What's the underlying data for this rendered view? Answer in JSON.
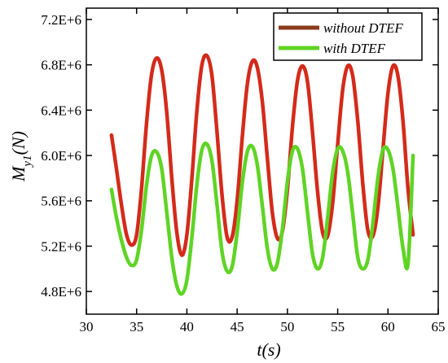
{
  "chart_data": {
    "type": "line",
    "title": "",
    "xlabel": "t(s)",
    "ylabel": "M",
    "ylabel_sub": "y1",
    "ylabel_unit": "(N)",
    "xlim": [
      30,
      65
    ],
    "ylim": [
      4600000,
      7300000
    ],
    "x_ticks": [
      30,
      35,
      40,
      45,
      50,
      55,
      60,
      65
    ],
    "x_tick_labels": [
      "30",
      "35",
      "40",
      "45",
      "50",
      "55",
      "60",
      "65"
    ],
    "y_ticks": [
      4800000,
      5200000,
      5600000,
      6000000,
      6400000,
      6800000,
      7200000
    ],
    "y_tick_labels": [
      "4.8E+6",
      "5.2E+6",
      "5.6E+6",
      "6.0E+6",
      "6.4E+6",
      "6.8E+6",
      "7.2E+6"
    ],
    "grid": false,
    "legend_position": "top-right",
    "series": [
      {
        "name": "without DTEF",
        "color": "#d42a1a",
        "legend_color": "#8b3a1a",
        "x": [
          32.5,
          33.0,
          33.5,
          34.0,
          34.5,
          35.0,
          35.5,
          36.0,
          36.5,
          37.0,
          37.5,
          38.0,
          38.5,
          39.0,
          39.5,
          40.0,
          40.5,
          41.0,
          41.5,
          42.0,
          42.5,
          43.0,
          43.5,
          44.0,
          44.5,
          45.0,
          45.5,
          46.0,
          46.5,
          47.0,
          47.5,
          48.0,
          48.5,
          49.0,
          49.5,
          50.0,
          50.5,
          51.0,
          51.5,
          52.0,
          52.5,
          53.0,
          53.5,
          54.0,
          54.5,
          55.0,
          55.5,
          56.0,
          56.5,
          57.0,
          57.5,
          58.0,
          58.5,
          59.0,
          59.5,
          60.0,
          60.5,
          61.0,
          61.5,
          62.0,
          62.5
        ],
        "values": [
          6180000,
          5880000,
          5560000,
          5300000,
          5210000,
          5300000,
          5720000,
          6300000,
          6720000,
          6860000,
          6750000,
          6380000,
          5800000,
          5320000,
          5120000,
          5300000,
          5800000,
          6400000,
          6800000,
          6880000,
          6700000,
          6200000,
          5650000,
          5280000,
          5280000,
          5600000,
          6150000,
          6620000,
          6830000,
          6780000,
          6480000,
          5980000,
          5500000,
          5270000,
          5330000,
          5700000,
          6250000,
          6660000,
          6790000,
          6650000,
          6200000,
          5680000,
          5320000,
          5290000,
          5580000,
          6100000,
          6580000,
          6790000,
          6700000,
          6300000,
          5750000,
          5340000,
          5290000,
          5540000,
          6050000,
          6550000,
          6790000,
          6700000,
          6300000,
          5700000,
          5300000
        ]
      },
      {
        "name": "with DTEF",
        "color": "#5fd424",
        "legend_color": "#5fd424",
        "x": [
          32.5,
          33.0,
          33.5,
          34.0,
          34.5,
          35.0,
          35.5,
          36.0,
          36.5,
          37.0,
          37.5,
          38.0,
          38.5,
          39.0,
          39.5,
          40.0,
          40.5,
          41.0,
          41.5,
          42.0,
          42.5,
          43.0,
          43.5,
          44.0,
          44.5,
          45.0,
          45.5,
          46.0,
          46.5,
          47.0,
          47.5,
          48.0,
          48.5,
          49.0,
          49.5,
          50.0,
          50.5,
          51.0,
          51.5,
          52.0,
          52.5,
          53.0,
          53.5,
          54.0,
          54.5,
          55.0,
          55.5,
          56.0,
          56.5,
          57.0,
          57.5,
          58.0,
          58.5,
          59.0,
          59.5,
          60.0,
          60.5,
          61.0,
          61.5,
          62.0,
          62.5
        ],
        "values": [
          5700000,
          5450000,
          5250000,
          5100000,
          5030000,
          5080000,
          5350000,
          5750000,
          6000000,
          6030000,
          5880000,
          5500000,
          5100000,
          4850000,
          4780000,
          4900000,
          5280000,
          5750000,
          6050000,
          6100000,
          5950000,
          5560000,
          5150000,
          4980000,
          5020000,
          5320000,
          5750000,
          6030000,
          6080000,
          5920000,
          5560000,
          5180000,
          5000000,
          5050000,
          5350000,
          5770000,
          6040000,
          6060000,
          5880000,
          5500000,
          5130000,
          5000000,
          5100000,
          5450000,
          5850000,
          6060000,
          6040000,
          5850000,
          5480000,
          5100000,
          5000000,
          5080000,
          5400000,
          5800000,
          6050000,
          6050000,
          5880000,
          5540000,
          5180000,
          5050000,
          6000000
        ]
      }
    ]
  }
}
